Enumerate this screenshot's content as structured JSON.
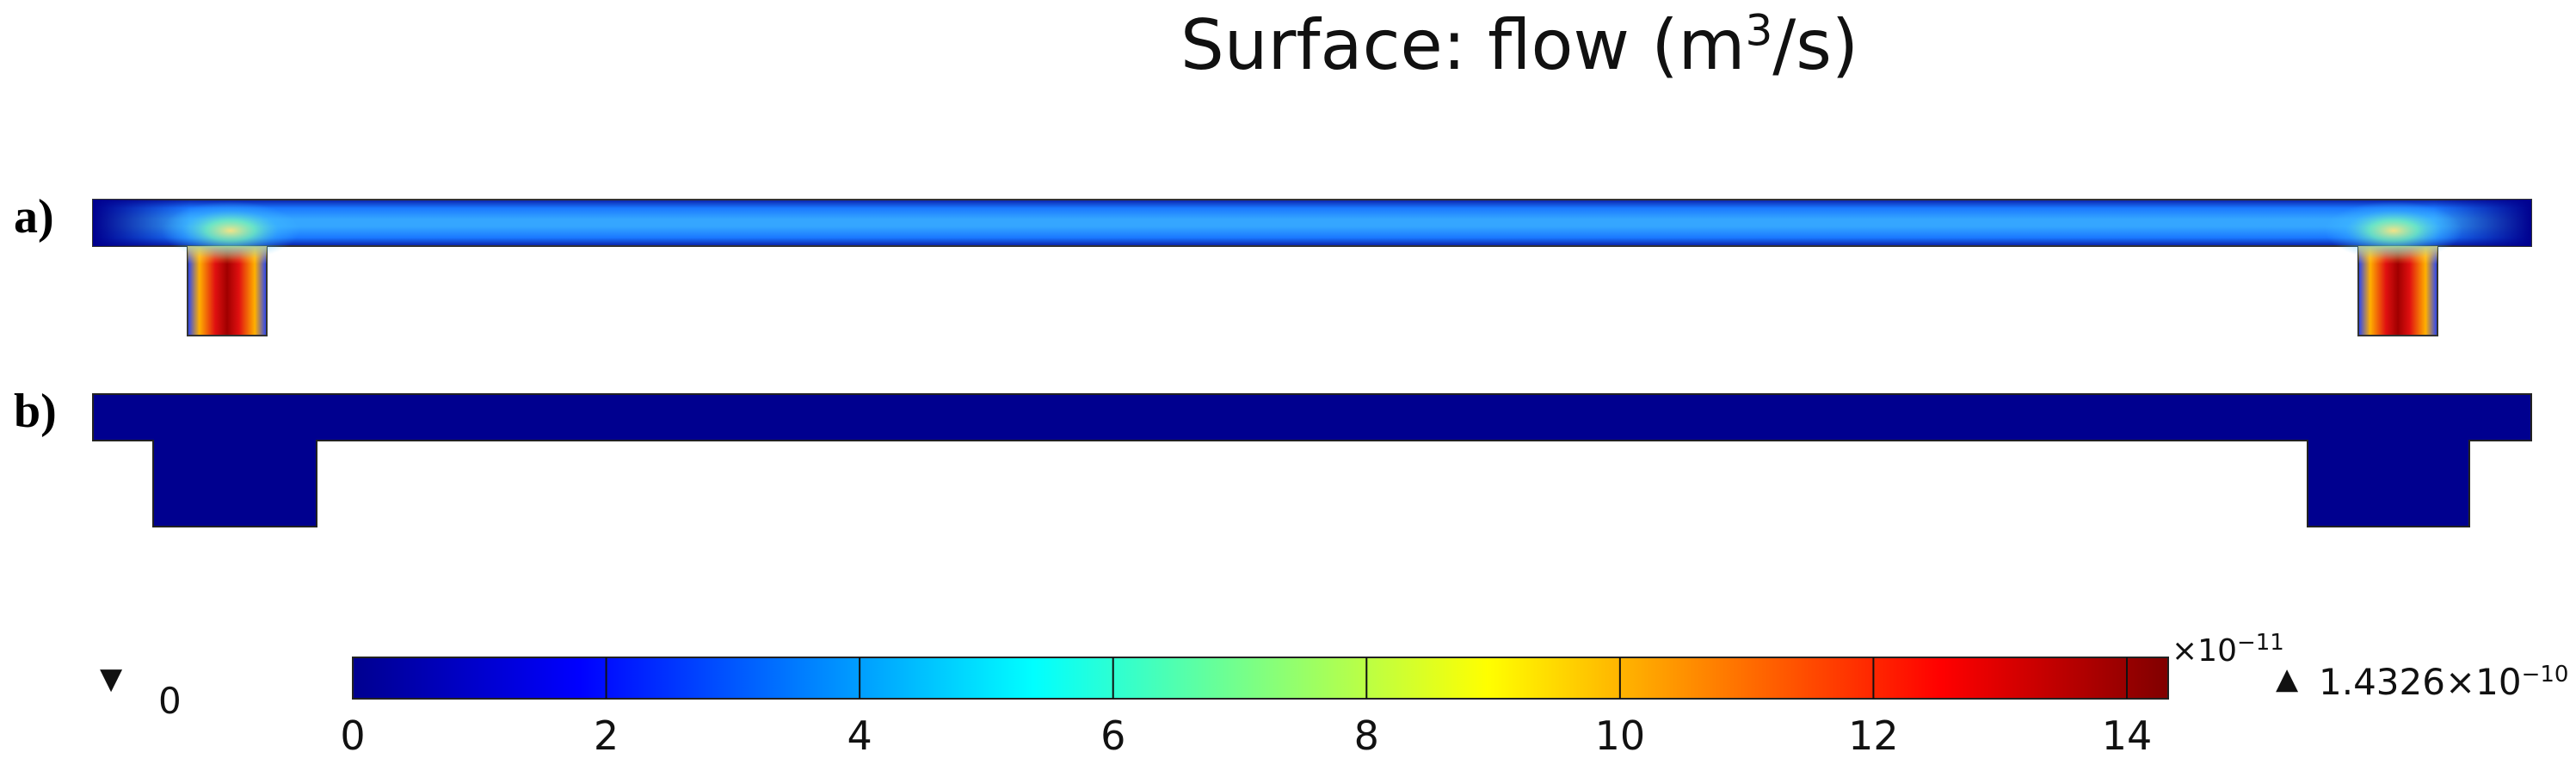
{
  "title": {
    "prefix": "Surface: flow (m",
    "sup": "3",
    "suffix": "/s)"
  },
  "panels": [
    {
      "label": "a)",
      "state": "flow"
    },
    {
      "label": "b)",
      "state": "no-flow"
    }
  ],
  "colorbar": {
    "colormap": [
      "#00008f",
      "#0000ff",
      "#0080ff",
      "#00ffff",
      "#80ff80",
      "#ffff00",
      "#ff8000",
      "#ff0000",
      "#800000"
    ],
    "ticks": [
      "0",
      "2",
      "4",
      "6",
      "8",
      "10",
      "12",
      "14"
    ],
    "tick_values": [
      0,
      2,
      4,
      6,
      8,
      10,
      12,
      14
    ],
    "range": [
      0,
      14.326
    ],
    "multiplier": {
      "base": "×10",
      "exp": "−11"
    },
    "min_marker": {
      "icon": "triangle-down-icon",
      "value": "0"
    },
    "max_marker": {
      "icon": "triangle-up-icon",
      "base": "1.4326×10",
      "exp": "−10"
    }
  }
}
